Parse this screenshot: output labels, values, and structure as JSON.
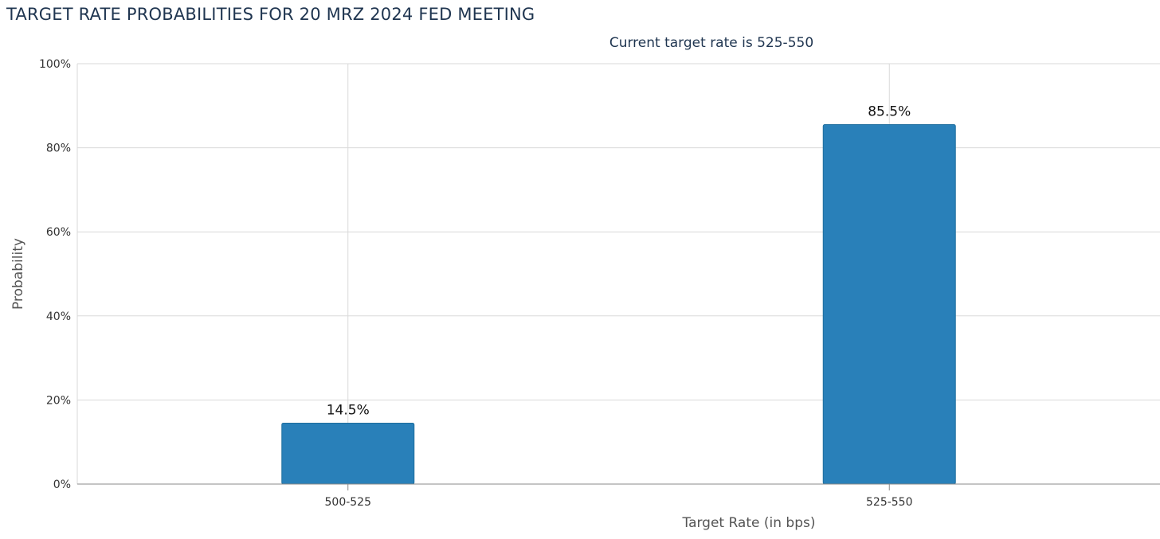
{
  "page": {
    "title": "TARGET RATE PROBABILITIES FOR 20 MRZ 2024 FED MEETING"
  },
  "colors": {
    "bar": "#2980b9",
    "bar_border": "#1f6e9e",
    "grid": "#d9d9d9",
    "axis": "#888888",
    "title": "#1f3550"
  },
  "chart_data": {
    "type": "bar",
    "subtitle": "Current target rate is 525-550",
    "xlabel": "Target Rate (in bps)",
    "ylabel": "Probability",
    "categories": [
      "500-525",
      "525-550"
    ],
    "values": [
      14.5,
      85.5
    ],
    "data_labels": [
      "14.5%",
      "85.5%"
    ],
    "ylim": [
      0,
      100
    ],
    "yticks": [
      0,
      20,
      40,
      60,
      80,
      100
    ],
    "ytick_labels": [
      "0%",
      "20%",
      "40%",
      "60%",
      "80%",
      "100%"
    ],
    "grid": true,
    "legend": "none"
  }
}
